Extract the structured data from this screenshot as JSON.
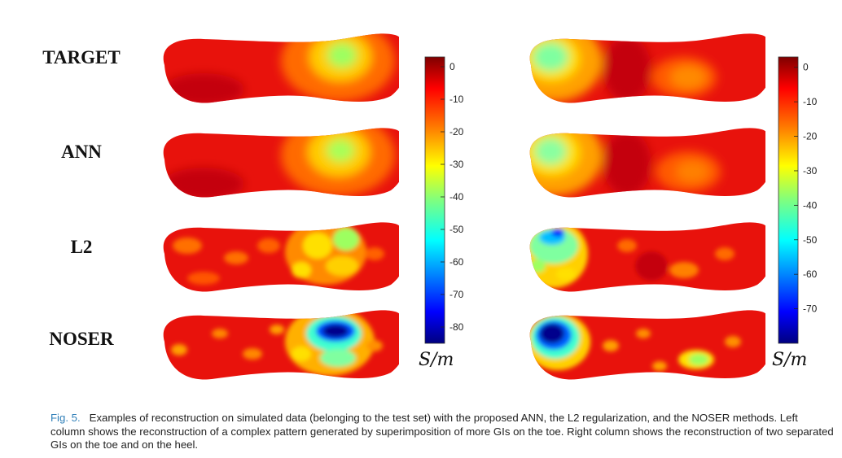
{
  "rows": [
    "TARGET",
    "ANN",
    "L2",
    "NOSER"
  ],
  "colorbar_left": {
    "ticks": [
      "0",
      "-10",
      "-20",
      "-30",
      "-40",
      "-50",
      "-60",
      "-70",
      "-80"
    ],
    "range": [
      -85,
      3
    ],
    "unit": "S/m"
  },
  "colorbar_right": {
    "ticks": [
      "0",
      "-10",
      "-20",
      "-30",
      "-40",
      "-50",
      "-60",
      "-70"
    ],
    "range": [
      -80,
      3
    ],
    "unit": "S/m"
  },
  "colormap": [
    "#00007f",
    "#0000ff",
    "#007fff",
    "#00ffff",
    "#7fff7f",
    "#ffff00",
    "#ff7f00",
    "#ff0000",
    "#7f0000"
  ],
  "caption": {
    "label": "Fig. 5.",
    "text": "Examples of reconstruction on simulated data (belonging to the test set) with the proposed ANN, the L2 regularization, and the NOSER methods. Left column shows the reconstruction of a complex pattern generated by superimposition of more GIs on the toe. Right column shows the reconstruction of two separated GIs on the toe and on the heel."
  }
}
